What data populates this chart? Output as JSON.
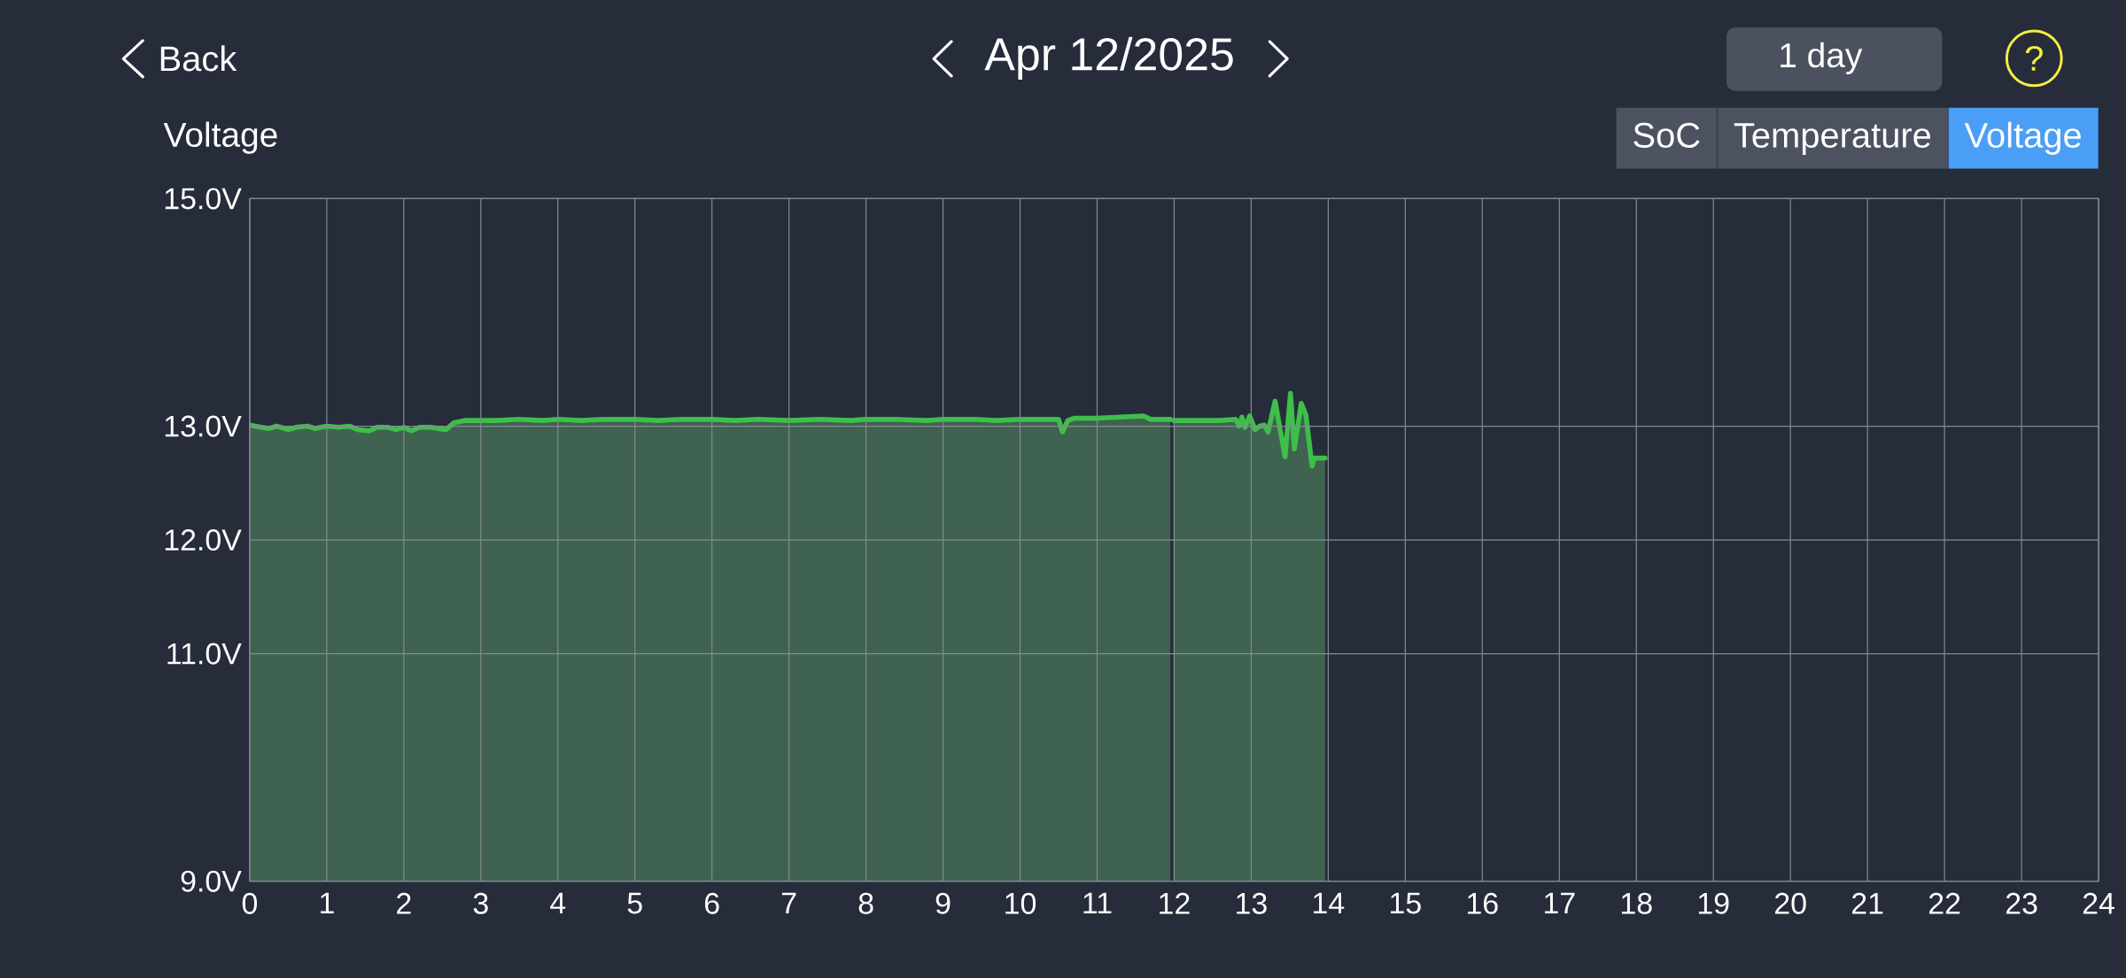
{
  "chart_data": {
    "type": "area",
    "title": "Apr 12/2025",
    "ylabel": "Voltage",
    "annotations": [
      "Back",
      "1 day",
      "?",
      "SoC",
      "Temperature",
      "Voltage"
    ],
    "x": [
      0,
      0.15,
      0.25,
      0.35,
      0.5,
      0.6,
      0.75,
      0.85,
      1.0,
      1.15,
      1.3,
      1.4,
      1.55,
      1.65,
      1.8,
      1.9,
      2.0,
      2.1,
      2.2,
      2.35,
      2.45,
      2.55,
      2.65,
      2.8,
      3.0,
      3.2,
      3.5,
      3.8,
      4.0,
      4.3,
      4.6,
      5.0,
      5.3,
      5.6,
      6.0,
      6.3,
      6.6,
      7.0,
      7.4,
      7.8,
      8.0,
      8.4,
      8.8,
      9.0,
      9.4,
      9.7,
      10.0,
      10.3,
      10.5,
      10.55,
      10.62,
      10.7,
      11.0,
      11.3,
      11.6,
      11.7,
      11.95,
      11.97,
      11.99,
      12.3,
      12.6,
      12.8,
      12.84,
      12.88,
      12.92,
      12.98,
      13.05,
      13.11,
      13.17,
      13.22,
      13.31,
      13.44,
      13.51,
      13.56,
      13.65,
      13.71,
      13.79,
      13.82,
      13.9,
      13.96
    ],
    "values": [
      13.01,
      12.99,
      12.98,
      13.0,
      12.97,
      12.99,
      13.0,
      12.98,
      13.0,
      12.99,
      13.0,
      12.97,
      12.96,
      12.99,
      12.99,
      12.97,
      12.99,
      12.96,
      12.99,
      12.99,
      12.98,
      12.97,
      13.03,
      13.05,
      13.05,
      13.05,
      13.06,
      13.05,
      13.06,
      13.05,
      13.06,
      13.06,
      13.05,
      13.06,
      13.06,
      13.05,
      13.06,
      13.05,
      13.06,
      13.05,
      13.06,
      13.06,
      13.05,
      13.06,
      13.06,
      13.05,
      13.06,
      13.06,
      13.06,
      12.95,
      13.05,
      13.07,
      13.07,
      13.08,
      13.09,
      13.06,
      13.06,
      null,
      13.05,
      13.05,
      13.05,
      13.06,
      13.0,
      13.08,
      12.99,
      13.09,
      12.97,
      13.0,
      13.01,
      12.95,
      13.22,
      12.73,
      13.29,
      12.8,
      13.2,
      13.1,
      12.65,
      12.72,
      12.72,
      12.72
    ],
    "color": "#3dbf4a",
    "xlim": [
      0,
      24
    ],
    "ylim": [
      9,
      15
    ],
    "xticks": [
      0,
      1,
      2,
      3,
      4,
      5,
      6,
      7,
      8,
      9,
      10,
      11,
      12,
      13,
      14,
      15,
      16,
      17,
      18,
      19,
      20,
      21,
      22,
      23,
      24
    ],
    "yticks": [
      {
        "value": 9,
        "label": "9.0V"
      },
      {
        "value": 11,
        "label": "11.0V"
      },
      {
        "value": 12,
        "label": "12.0V"
      },
      {
        "value": 13,
        "label": "13.0V"
      },
      {
        "value": 15,
        "label": "15.0V"
      }
    ],
    "grid": true
  }
}
